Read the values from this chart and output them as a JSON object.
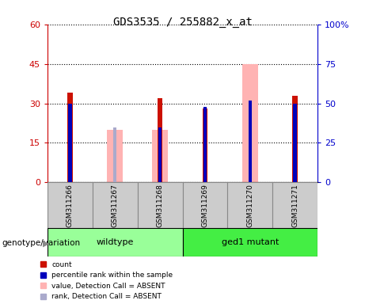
{
  "title": "GDS3535 / 255882_x_at",
  "samples": [
    "GSM311266",
    "GSM311267",
    "GSM311268",
    "GSM311269",
    "GSM311270",
    "GSM311271"
  ],
  "bars": {
    "GSM311266": {
      "red": 34,
      "pink": null,
      "blue_rank": 50,
      "light_blue": null
    },
    "GSM311267": {
      "red": null,
      "pink": 20,
      "blue_rank": null,
      "light_blue": 35
    },
    "GSM311268": {
      "red": 32,
      "pink": 20,
      "blue_rank": 35,
      "light_blue": null
    },
    "GSM311269": {
      "red": 28,
      "pink": null,
      "blue_rank": 48,
      "light_blue": null
    },
    "GSM311270": {
      "red": null,
      "pink": 45,
      "blue_rank": 52,
      "light_blue": null
    },
    "GSM311271": {
      "red": 33,
      "pink": null,
      "blue_rank": 50,
      "light_blue": null
    }
  },
  "ylim_left": [
    0,
    60
  ],
  "ylim_right": [
    0,
    100
  ],
  "yticks_left": [
    0,
    15,
    30,
    45,
    60
  ],
  "yticks_right": [
    0,
    25,
    50,
    75,
    100
  ],
  "ytick_labels_left": [
    "0",
    "15",
    "30",
    "45",
    "60"
  ],
  "ytick_labels_right": [
    "0",
    "25",
    "50",
    "75",
    "100%"
  ],
  "left_axis_color": "#cc0000",
  "right_axis_color": "#0000cc",
  "red_color": "#cc1100",
  "pink_color": "#ffb3b3",
  "blue_color": "#0000bb",
  "light_blue_color": "#aaaacc",
  "wildtype_color": "#99ff99",
  "ged1_color": "#44ee44",
  "legend_labels": [
    "count",
    "percentile rank within the sample",
    "value, Detection Call = ABSENT",
    "rank, Detection Call = ABSENT"
  ],
  "legend_colors": [
    "#cc1100",
    "#0000bb",
    "#ffb3b3",
    "#aaaacc"
  ],
  "genotype_label": "genotype/variation"
}
